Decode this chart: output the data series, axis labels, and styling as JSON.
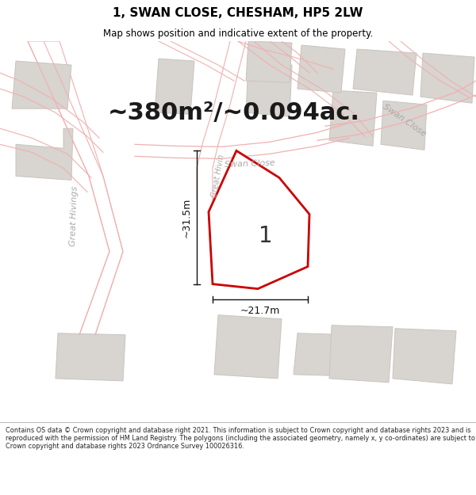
{
  "title_line1": "1, SWAN CLOSE, CHESHAM, HP5 2LW",
  "title_line2": "Map shows position and indicative extent of the property.",
  "area_text": "~380m²/~0.094ac.",
  "plot_label": "1",
  "dim_width": "~21.7m",
  "dim_height": "~31.5m",
  "footer_text": "Contains OS data © Crown copyright and database right 2021. This information is subject to Crown copyright and database rights 2023 and is reproduced with the permission of HM Land Registry. The polygons (including the associated geometry, namely x, y co-ordinates) are subject to Crown copyright and database rights 2023 Ordnance Survey 100026316.",
  "bg_color": "#f7f6f4",
  "footer_bg": "#ffffff",
  "title_bg": "#ffffff",
  "road_outline_color": "#f0b0b0",
  "building_color": "#d8d4cf",
  "building_edge_color": "#c8c4bf",
  "plot_outline_color": "#cc0000",
  "plot_fill_color": "#ffffff",
  "street_label_color": "#aaaaaa",
  "dim_color": "#111111",
  "title_fontsize": 11,
  "subtitle_fontsize": 8.5,
  "area_fontsize": 22,
  "label_fontsize": 20,
  "dim_fontsize": 9,
  "street_fontsize": 8
}
